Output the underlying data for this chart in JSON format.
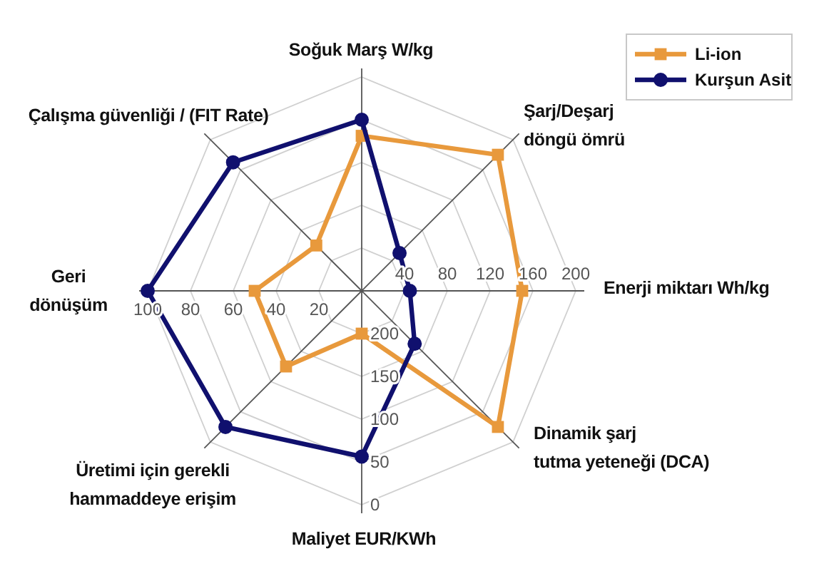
{
  "chart_data": {
    "type": "radar",
    "categories": [
      "Soğuk Marş W/kg",
      "Şarj/Deşarj\ndöngü ömrü",
      "Enerji miktarı Wh/kg",
      "Dinamik şarj\ntutma yeteneği (DCA)",
      "Maliyet EUR/KWh",
      "Üretimi için gerekli\nhammaddeye erişim",
      "Geri\ndönüşüm",
      "Çalışma güvenliği / (FIT Rate)"
    ],
    "series": [
      {
        "name": "Li-ion",
        "color": "#e8993c",
        "marker": "square",
        "values": [
          145,
          180,
          150,
          180,
          40,
          100,
          100,
          60
        ]
      },
      {
        "name": "Kurşun Asit",
        "color": "#10106e",
        "marker": "circle",
        "values": [
          160,
          50,
          45,
          70,
          155,
          180,
          200,
          170
        ]
      }
    ],
    "ylim": [
      0,
      200
    ],
    "yticks": [
      40,
      80,
      120,
      160,
      200
    ],
    "grid": true,
    "legend": "top right",
    "annotations": [
      {
        "text": "20",
        "x": "Geri\ndönüşüm"
      },
      {
        "text": "40",
        "x": "Geri\ndönüşüm"
      },
      {
        "text": "60",
        "x": "Geri\ndönüşüm"
      },
      {
        "text": "80",
        "x": "Geri\ndönüşüm"
      },
      {
        "text": "100",
        "x": "Geri\ndönüşüm"
      },
      {
        "text": "200",
        "x": "Maliyet EUR/KWh"
      },
      {
        "text": "150",
        "x": "Maliyet EUR/KWh"
      },
      {
        "text": "100",
        "x": "Maliyet EUR/KWh"
      },
      {
        "text": "50",
        "x": "Maliyet EUR/KWh"
      },
      {
        "text": "0",
        "x": "Maliyet EUR/KWh"
      }
    ]
  }
}
